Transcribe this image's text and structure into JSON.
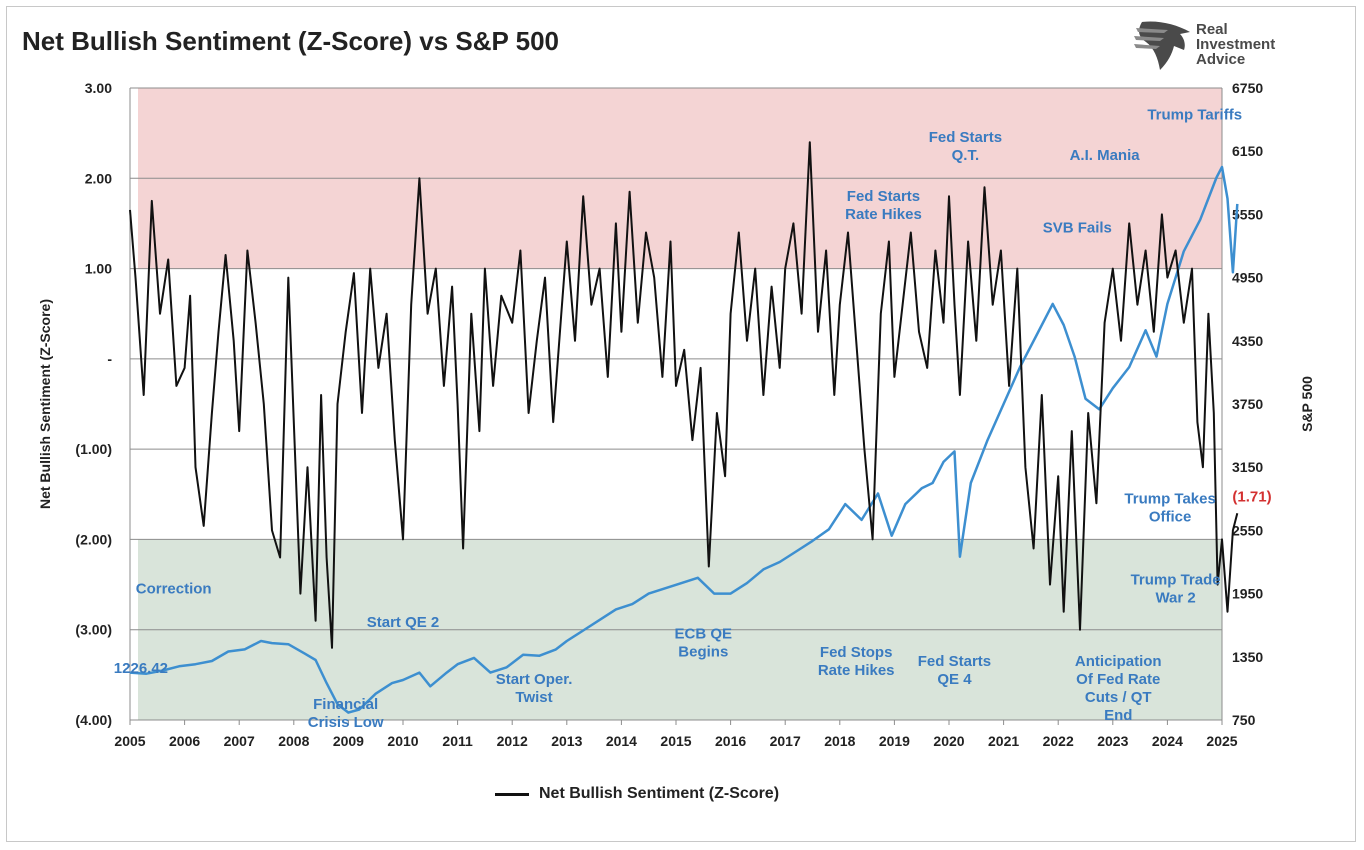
{
  "header": {
    "title": "Net Bullish Sentiment (Z-Score) vs S&P 500"
  },
  "logo": {
    "lines": [
      "Real",
      "Investment",
      "Advice"
    ],
    "icon": "eagle-head-icon",
    "color": "#4a4a4a"
  },
  "legend": {
    "label": "Net Bullish Sentiment (Z-Score)",
    "color": "#111111"
  },
  "colors": {
    "overbought_zone": "#f4d4d4",
    "oversold_zone": "#d9e4da",
    "sentiment_line": "#111111",
    "sp500_line": "#3d8fd0",
    "annotation_text": "#3a7bc0",
    "latest_value": "#d33030"
  },
  "chart_data": {
    "type": "line",
    "title": "Net Bullish Sentiment (Z-Score) vs S&P 500",
    "x_axis": {
      "range": [
        2005,
        2025
      ],
      "ticks": [
        "2005",
        "2006",
        "2007",
        "2008",
        "2009",
        "2010",
        "2011",
        "2012",
        "2013",
        "2014",
        "2015",
        "2016",
        "2017",
        "2018",
        "2019",
        "2020",
        "2021",
        "2022",
        "2023",
        "2024",
        "2025"
      ]
    },
    "y_left": {
      "label": "Net Bullish Sentiment (Z-Score)",
      "range": [
        -4,
        3
      ],
      "ticks": [
        {
          "value": 3,
          "label": "3.00"
        },
        {
          "value": 2,
          "label": "2.00"
        },
        {
          "value": 1,
          "label": "1.00"
        },
        {
          "value": 0,
          "label": "-"
        },
        {
          "value": -1,
          "label": "(1.00)"
        },
        {
          "value": -2,
          "label": "(2.00)"
        },
        {
          "value": -3,
          "label": "(3.00)"
        },
        {
          "value": -4,
          "label": "(4.00)"
        }
      ]
    },
    "y_right": {
      "label": "S&P 500",
      "range": [
        750,
        6750
      ],
      "ticks": [
        "6750",
        "6150",
        "5550",
        "4950",
        "4350",
        "3750",
        "3150",
        "2550",
        "1950",
        "1350",
        "750"
      ]
    },
    "zones": [
      {
        "from": 1,
        "to": 3
      },
      {
        "from": -4,
        "to": -2
      }
    ],
    "series": [
      {
        "name": "Net Bullish Sentiment (Z-Score)",
        "axis": "left",
        "x": [
          2005.0,
          2005.1,
          2005.25,
          2005.4,
          2005.55,
          2005.7,
          2005.85,
          2006.0,
          2006.1,
          2006.2,
          2006.35,
          2006.5,
          2006.62,
          2006.75,
          2006.9,
          2007.0,
          2007.15,
          2007.3,
          2007.45,
          2007.6,
          2007.75,
          2007.9,
          2008.0,
          2008.12,
          2008.25,
          2008.4,
          2008.5,
          2008.6,
          2008.7,
          2008.8,
          2008.95,
          2009.1,
          2009.25,
          2009.4,
          2009.55,
          2009.7,
          2009.85,
          2010.0,
          2010.15,
          2010.3,
          2010.45,
          2010.6,
          2010.75,
          2010.9,
          2011.0,
          2011.1,
          2011.25,
          2011.4,
          2011.5,
          2011.65,
          2011.8,
          2012.0,
          2012.15,
          2012.3,
          2012.45,
          2012.6,
          2012.75,
          2012.9,
          2013.0,
          2013.15,
          2013.3,
          2013.45,
          2013.6,
          2013.75,
          2013.9,
          2014.0,
          2014.15,
          2014.3,
          2014.45,
          2014.6,
          2014.75,
          2014.9,
          2015.0,
          2015.15,
          2015.3,
          2015.45,
          2015.6,
          2015.75,
          2015.9,
          2016.0,
          2016.15,
          2016.3,
          2016.45,
          2016.6,
          2016.75,
          2016.9,
          2017.0,
          2017.15,
          2017.3,
          2017.45,
          2017.6,
          2017.75,
          2017.9,
          2018.0,
          2018.15,
          2018.3,
          2018.45,
          2018.6,
          2018.75,
          2018.9,
          2019.0,
          2019.15,
          2019.3,
          2019.45,
          2019.6,
          2019.75,
          2019.9,
          2020.0,
          2020.1,
          2020.2,
          2020.35,
          2020.5,
          2020.65,
          2020.8,
          2020.95,
          2021.1,
          2021.25,
          2021.4,
          2021.55,
          2021.7,
          2021.85,
          2022.0,
          2022.1,
          2022.25,
          2022.4,
          2022.55,
          2022.7,
          2022.85,
          2023.0,
          2023.15,
          2023.3,
          2023.45,
          2023.6,
          2023.75,
          2023.9,
          2024.0,
          2024.15,
          2024.3,
          2024.45,
          2024.55,
          2024.65,
          2024.75,
          2024.85,
          2024.92,
          2025.0,
          2025.1,
          2025.2,
          2025.28
        ],
        "values": [
          1.65,
          0.9,
          -0.4,
          1.75,
          0.5,
          1.1,
          -0.3,
          -0.1,
          0.7,
          -1.2,
          -1.85,
          -0.6,
          0.3,
          1.15,
          0.2,
          -0.8,
          1.2,
          0.4,
          -0.5,
          -1.9,
          -2.2,
          0.9,
          -0.7,
          -2.6,
          -1.2,
          -2.9,
          -0.4,
          -2.2,
          -3.2,
          -0.5,
          0.3,
          0.95,
          -0.6,
          1.0,
          -0.1,
          0.5,
          -0.9,
          -2.0,
          0.6,
          2.0,
          0.5,
          1.0,
          -0.3,
          0.8,
          -0.5,
          -2.1,
          0.5,
          -0.8,
          1.0,
          -0.3,
          0.7,
          0.4,
          1.2,
          -0.6,
          0.2,
          0.9,
          -0.7,
          0.5,
          1.3,
          0.2,
          1.8,
          0.6,
          1.0,
          -0.2,
          1.5,
          0.3,
          1.85,
          0.4,
          1.4,
          0.9,
          -0.2,
          1.3,
          -0.3,
          0.1,
          -0.9,
          -0.1,
          -2.3,
          -0.6,
          -1.3,
          0.5,
          1.4,
          0.2,
          1.0,
          -0.4,
          0.8,
          -0.1,
          1.0,
          1.5,
          0.5,
          2.4,
          0.3,
          1.2,
          -0.4,
          0.6,
          1.4,
          0.2,
          -1.0,
          -2.0,
          0.5,
          1.3,
          -0.2,
          0.6,
          1.4,
          0.3,
          -0.1,
          1.2,
          0.4,
          1.8,
          0.6,
          -0.4,
          1.3,
          0.2,
          1.9,
          0.6,
          1.2,
          -0.3,
          1.0,
          -1.2,
          -2.1,
          -0.4,
          -2.5,
          -1.3,
          -2.8,
          -0.8,
          -3.0,
          -0.6,
          -1.6,
          0.4,
          1.0,
          0.2,
          1.5,
          0.6,
          1.2,
          0.3,
          1.6,
          0.9,
          1.2,
          0.4,
          1.0,
          -0.7,
          -1.2,
          0.5,
          -0.6,
          -2.5,
          -2.0,
          -2.8,
          -1.9,
          -1.71
        ]
      },
      {
        "name": "S&P 500",
        "axis": "right",
        "x": [
          2005.0,
          2005.3,
          2005.6,
          2005.9,
          2006.2,
          2006.5,
          2006.8,
          2007.1,
          2007.4,
          2007.6,
          2007.9,
          2008.2,
          2008.4,
          2008.6,
          2008.8,
          2009.0,
          2009.2,
          2009.5,
          2009.8,
          2010.0,
          2010.3,
          2010.5,
          2010.8,
          2011.0,
          2011.3,
          2011.6,
          2011.9,
          2012.2,
          2012.5,
          2012.8,
          2013.0,
          2013.3,
          2013.6,
          2013.9,
          2014.2,
          2014.5,
          2014.8,
          2015.1,
          2015.4,
          2015.7,
          2016.0,
          2016.3,
          2016.6,
          2016.9,
          2017.2,
          2017.5,
          2017.8,
          2018.1,
          2018.4,
          2018.7,
          2018.95,
          2019.2,
          2019.5,
          2019.7,
          2019.9,
          2020.1,
          2020.2,
          2020.4,
          2020.7,
          2021.0,
          2021.3,
          2021.6,
          2021.9,
          2022.1,
          2022.3,
          2022.5,
          2022.75,
          2023.0,
          2023.3,
          2023.6,
          2023.8,
          2024.0,
          2024.3,
          2024.6,
          2024.9,
          2025.0,
          2025.1,
          2025.2,
          2025.28
        ],
        "values": [
          1200,
          1190,
          1220,
          1260,
          1280,
          1310,
          1400,
          1420,
          1500,
          1480,
          1470,
          1380,
          1320,
          1100,
          900,
          820,
          850,
          1000,
          1100,
          1130,
          1200,
          1070,
          1200,
          1280,
          1340,
          1200,
          1250,
          1370,
          1360,
          1420,
          1500,
          1600,
          1700,
          1800,
          1850,
          1950,
          2000,
          2050,
          2100,
          1950,
          1950,
          2050,
          2180,
          2250,
          2350,
          2450,
          2560,
          2800,
          2650,
          2900,
          2500,
          2800,
          2950,
          3000,
          3200,
          3300,
          2300,
          3000,
          3400,
          3750,
          4100,
          4400,
          4700,
          4500,
          4200,
          3800,
          3700,
          3900,
          4100,
          4450,
          4200,
          4700,
          5200,
          5500,
          5900,
          6000,
          5700,
          5000,
          5650
        ]
      }
    ],
    "annotations": [
      {
        "text": "Correction",
        "x": 2005.8,
        "y": -2.6,
        "axis": "left"
      },
      {
        "text": "1226.42",
        "x": 2005.2,
        "y": -3.48,
        "axis": "left"
      },
      {
        "text": "Financial Crisis Low",
        "x": 2008.95,
        "y": -3.88,
        "axis": "left"
      },
      {
        "text": "Start QE 2",
        "x": 2010.0,
        "y": -2.97,
        "axis": "left"
      },
      {
        "text": "Start Oper. Twist",
        "x": 2012.4,
        "y": -3.6,
        "axis": "left"
      },
      {
        "text": "ECB QE Begins",
        "x": 2015.5,
        "y": -3.1,
        "axis": "left"
      },
      {
        "text": "Fed Stops Rate Hikes",
        "x": 2018.3,
        "y": -3.3,
        "axis": "left"
      },
      {
        "text": "Fed Starts QE 4",
        "x": 2020.1,
        "y": -3.4,
        "axis": "left"
      },
      {
        "text": "Fed Starts Q.T.",
        "x": 2020.3,
        "y": 2.4,
        "axis": "left"
      },
      {
        "text": "Fed Starts Rate Hikes",
        "x": 2018.8,
        "y": 1.75,
        "axis": "left"
      },
      {
        "text": "SVB Fails",
        "x": 2022.35,
        "y": 1.4,
        "axis": "left"
      },
      {
        "text": "A.I. Mania",
        "x": 2022.85,
        "y": 2.2,
        "axis": "left"
      },
      {
        "text": "Trump Tariffs",
        "x": 2024.5,
        "y": 2.65,
        "axis": "left"
      },
      {
        "text": "Trump Takes Office",
        "x": 2024.05,
        "y": -1.6,
        "axis": "left"
      },
      {
        "text": "Trump Trade War 2",
        "x": 2024.15,
        "y": -2.5,
        "axis": "left"
      },
      {
        "text": "Anticipation Of Fed Rate Cuts / QT End",
        "x": 2023.1,
        "y": -3.4,
        "axis": "left"
      },
      {
        "text": "(1.71)",
        "x": 2025.55,
        "y": -1.58,
        "axis": "left"
      }
    ]
  }
}
